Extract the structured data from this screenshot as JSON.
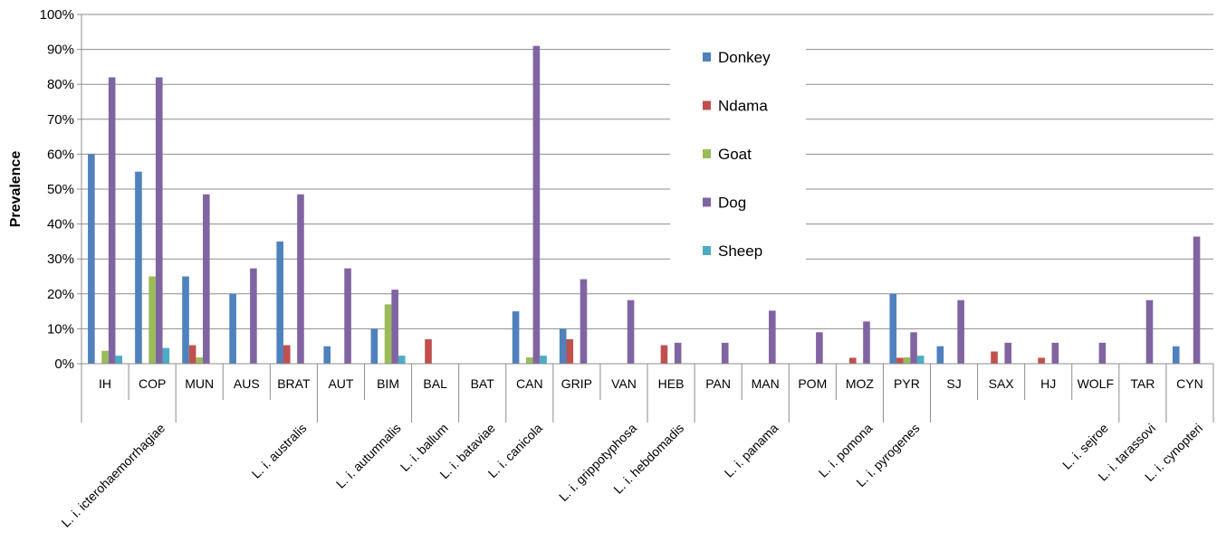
{
  "chart_data": {
    "type": "bar",
    "title": "",
    "xlabel": "",
    "ylabel": "Prevalence",
    "ylim": [
      0,
      1
    ],
    "y_ticks": [
      "0%",
      "10%",
      "20%",
      "30%",
      "40%",
      "50%",
      "60%",
      "70%",
      "80%",
      "90%",
      "100%"
    ],
    "grid": "horizontal",
    "legend_position": "inside-top-right",
    "categories": [
      "IH",
      "COP",
      "MUN",
      "AUS",
      "BRAT",
      "AUT",
      "BIM",
      "BAL",
      "BAT",
      "CAN",
      "GRIP",
      "VAN",
      "HEB",
      "PAN",
      "MAN",
      "POM",
      "MOZ",
      "PYR",
      "SJ",
      "SAX",
      "HJ",
      "WOLF",
      "TAR",
      "CYN"
    ],
    "groups": [
      {
        "label": "L. i. icterohaemorrhagiae",
        "span": 2
      },
      {
        "label": "L. i. australis",
        "span": 3
      },
      {
        "label": "L. i. autumnalis",
        "span": 2
      },
      {
        "label": "L. i. ballum",
        "span": 1
      },
      {
        "label": "L. i. bataviae",
        "span": 1
      },
      {
        "label": "L. i. canicola",
        "span": 1
      },
      {
        "label": "L. i. grippotyphosa",
        "span": 2
      },
      {
        "label": "L. i. hebdomadis",
        "span": 1
      },
      {
        "label": "L. i. panama",
        "span": 2
      },
      {
        "label": "L. i. pomona",
        "span": 2
      },
      {
        "label": "L. i. pyrogenes",
        "span": 1
      },
      {
        "label": "L. i. sejroe",
        "span": 4
      },
      {
        "label": "L. i. tarassovi",
        "span": 1
      },
      {
        "label": "L. i. cynopteri",
        "span": 1
      }
    ],
    "series": [
      {
        "name": "Donkey",
        "color": "#4F81BD",
        "values": [
          0.6,
          0.55,
          0.25,
          0.2,
          0.35,
          0.05,
          0.1,
          0,
          0,
          0.15,
          0.1,
          0,
          0,
          0,
          0,
          0,
          0,
          0.2,
          0.05,
          0,
          0,
          0,
          0,
          0.05
        ]
      },
      {
        "name": "Ndama",
        "color": "#C0504D",
        "values": [
          0,
          0,
          0.053,
          0,
          0.053,
          0,
          0,
          0.07,
          0,
          0,
          0.07,
          0,
          0.053,
          0,
          0,
          0,
          0.017,
          0.017,
          0,
          0.035,
          0.017,
          0,
          0,
          0
        ]
      },
      {
        "name": "Goat",
        "color": "#9BBB59",
        "values": [
          0.037,
          0.25,
          0.018,
          0,
          0,
          0,
          0.17,
          0,
          0,
          0.018,
          0,
          0,
          0,
          0,
          0,
          0,
          0,
          0.018,
          0,
          0,
          0,
          0,
          0,
          0
        ]
      },
      {
        "name": "Dog",
        "color": "#8064A2",
        "values": [
          0.82,
          0.82,
          0.485,
          0.273,
          0.485,
          0.273,
          0.212,
          0,
          0,
          0.91,
          0.242,
          0.182,
          0.06,
          0.06,
          0.152,
          0.09,
          0.121,
          0.09,
          0.182,
          0.06,
          0.06,
          0.06,
          0.182,
          0.364
        ]
      },
      {
        "name": "Sheep",
        "color": "#4BACC6",
        "values": [
          0.023,
          0.045,
          0,
          0,
          0,
          0,
          0.023,
          0,
          0,
          0.023,
          0,
          0,
          0,
          0,
          0,
          0,
          0,
          0.023,
          0,
          0,
          0,
          0,
          0,
          0
        ]
      }
    ]
  }
}
